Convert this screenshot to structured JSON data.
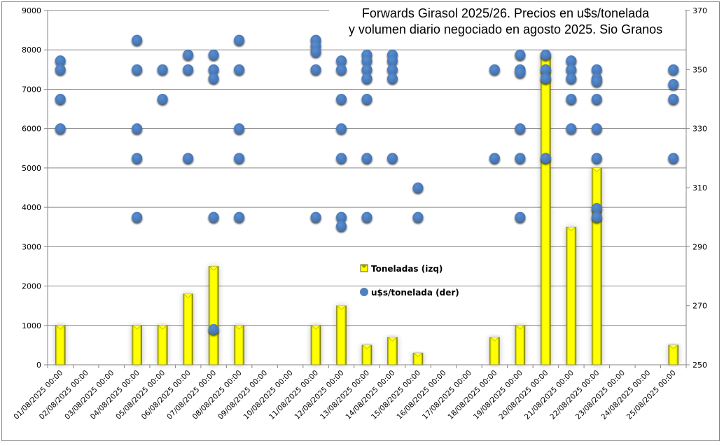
{
  "chart_data": {
    "type": "bar+scatter",
    "title": "Forwards Girasol 2025/26. Precios en u$s/tonelada y volumen diario negociado en agosto 2025. Sio Granos",
    "title_lines": [
      "Forwards Girasol 2025/26. Precios en u$s/tonelada",
      "y volumen diario negociado en agosto 2025. Sio Granos"
    ],
    "xlabel": "",
    "ylabel_left": "",
    "ylabel_right": "",
    "categories": [
      "01/08/2025 00:00",
      "02/08/2025 00:00",
      "03/08/2025 00:00",
      "04/08/2025 00:00",
      "05/08/2025 00:00",
      "06/08/2025 00:00",
      "07/08/2025 00:00",
      "08/08/2025 00:00",
      "09/08/2025 00:00",
      "10/08/2025 00:00",
      "11/08/2025 00:00",
      "12/08/2025 00:00",
      "13/08/2025 00:00",
      "14/08/2025 00:00",
      "15/08/2025 00:00",
      "16/08/2025 00:00",
      "17/08/2025 00:00",
      "18/08/2025 00:00",
      "19/08/2025 00:00",
      "20/08/2025 00:00",
      "21/08/2025 00:00",
      "22/08/2025 00:00",
      "23/08/2025 00:00",
      "24/08/2025 00:00",
      "25/08/2025 00:00"
    ],
    "left_axis": {
      "ylim": [
        0,
        9000
      ],
      "ticks": [
        0,
        1000,
        2000,
        3000,
        4000,
        5000,
        6000,
        7000,
        8000,
        9000
      ]
    },
    "right_axis": {
      "ylim": [
        250,
        370
      ],
      "ticks": [
        250,
        270,
        290,
        310,
        330,
        350,
        370
      ]
    },
    "grid": true,
    "legend_position": "inside-center",
    "series": [
      {
        "name": "Toneladas (izq)",
        "type": "bar",
        "axis": "left",
        "color": "#FFFF00",
        "values": [
          1000,
          0,
          0,
          1000,
          1000,
          1800,
          2500,
          1000,
          0,
          0,
          1000,
          1500,
          500,
          700,
          300,
          0,
          0,
          700,
          1000,
          7900,
          3500,
          5000,
          0,
          0,
          500
        ]
      },
      {
        "name": "u$s/tonelada (der)",
        "type": "scatter",
        "axis": "right",
        "color": "#4F81BD",
        "points": [
          {
            "x": "01/08/2025 00:00",
            "y": [
              353,
              350,
              340,
              330
            ]
          },
          {
            "x": "04/08/2025 00:00",
            "y": [
              360,
              350,
              330,
              320,
              300
            ]
          },
          {
            "x": "05/08/2025 00:00",
            "y": [
              350,
              340
            ]
          },
          {
            "x": "06/08/2025 00:00",
            "y": [
              355,
              350,
              320
            ]
          },
          {
            "x": "07/08/2025 00:00",
            "y": [
              355,
              350,
              347,
              300,
              262
            ]
          },
          {
            "x": "08/08/2025 00:00",
            "y": [
              360,
              350,
              330,
              320,
              300
            ]
          },
          {
            "x": "11/08/2025 00:00",
            "y": [
              360,
              358,
              356,
              350,
              300
            ]
          },
          {
            "x": "12/08/2025 00:00",
            "y": [
              353,
              350,
              340,
              330,
              320,
              300,
              297
            ]
          },
          {
            "x": "13/08/2025 00:00",
            "y": [
              355,
              353,
              350,
              347,
              340,
              320,
              300
            ]
          },
          {
            "x": "14/08/2025 00:00",
            "y": [
              355,
              353,
              350,
              347,
              320
            ]
          },
          {
            "x": "15/08/2025 00:00",
            "y": [
              310,
              300
            ]
          },
          {
            "x": "18/08/2025 00:00",
            "y": [
              350,
              320
            ]
          },
          {
            "x": "19/08/2025 00:00",
            "y": [
              355,
              350,
              349,
              330,
              320,
              300
            ]
          },
          {
            "x": "20/08/2025 00:00",
            "y": [
              355,
              350,
              347,
              320
            ]
          },
          {
            "x": "21/08/2025 00:00",
            "y": [
              353,
              350,
              347,
              340,
              330
            ]
          },
          {
            "x": "22/08/2025 00:00",
            "y": [
              350,
              347,
              346,
              340,
              330,
              320,
              303,
              300
            ]
          },
          {
            "x": "25/08/2025 00:00",
            "y": [
              350,
              345,
              340,
              320
            ]
          }
        ]
      }
    ]
  },
  "legend": {
    "items": [
      {
        "label": "Toneladas (izq)",
        "icon": "yellow-bar-swatch"
      },
      {
        "label": "u$s/tonelada (der)",
        "icon": "blue-circle-marker"
      }
    ]
  }
}
